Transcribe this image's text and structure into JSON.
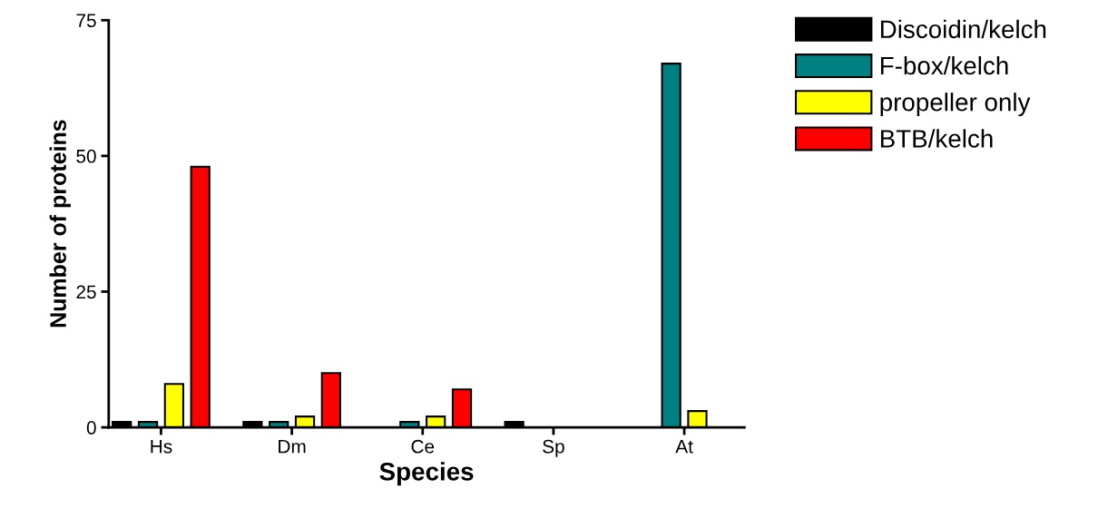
{
  "chart_data": {
    "type": "bar",
    "xlabel": "Species",
    "ylabel": "Number of proteins",
    "categories": [
      "Hs",
      "Dm",
      "Ce",
      "Sp",
      "At"
    ],
    "series": [
      {
        "name": "Discoidin/kelch",
        "color": "#000000",
        "values": [
          1,
          1,
          0,
          1,
          0
        ]
      },
      {
        "name": "F-box/kelch",
        "color": "#008080",
        "values": [
          1,
          1,
          1,
          0,
          67
        ]
      },
      {
        "name": "propeller only",
        "color": "#ffff00",
        "values": [
          8,
          2,
          2,
          0,
          3
        ]
      },
      {
        "name": "BTB/kelch",
        "color": "#ff0000",
        "values": [
          48,
          10,
          7,
          0,
          0
        ]
      }
    ],
    "ylim": [
      0,
      75
    ],
    "yticks": [
      0,
      25,
      50,
      75
    ],
    "grid": false,
    "legend": "top right"
  }
}
